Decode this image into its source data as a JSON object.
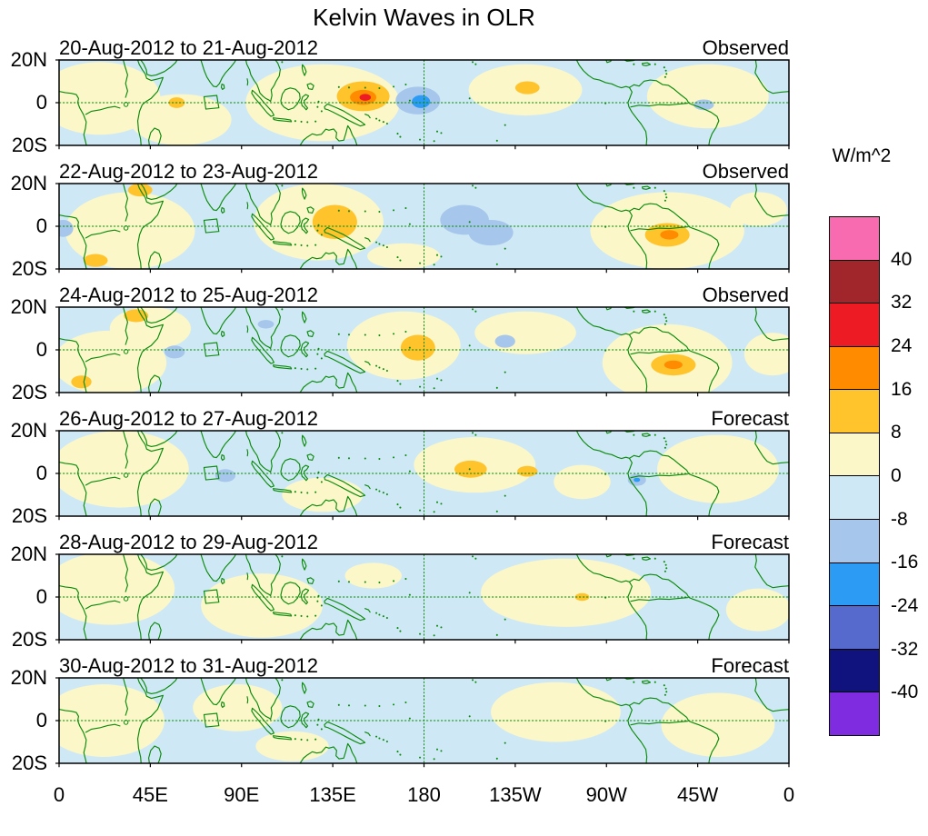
{
  "chart_data": {
    "type": "heatmap",
    "title": "Kelvin Waves in OLR",
    "x_axis": {
      "tick_labels": [
        "0",
        "45E",
        "90E",
        "135E",
        "180",
        "135W",
        "90W",
        "45W",
        "0"
      ],
      "tick_lon": [
        0,
        45,
        90,
        135,
        180,
        225,
        270,
        315,
        360
      ],
      "range_lon": [
        0,
        360
      ]
    },
    "y_axis": {
      "tick_labels": [
        "20N",
        "0",
        "20S"
      ],
      "range_lat": [
        20,
        -20
      ]
    },
    "colorbar": {
      "label": "W/m^2",
      "tick_labels": [
        "40",
        "32",
        "24",
        "16",
        "8",
        "0",
        "-8",
        "-16",
        "-24",
        "-32",
        "-40"
      ],
      "colors": [
        "#F96BB0",
        "#A0262B",
        "#EC1B24",
        "#FF8C00",
        "#FFC32B",
        "#FBF7C9",
        "#CEE9F5",
        "#A6C6EB",
        "#2B9BF4",
        "#5669CC",
        "#10127E",
        "#7F2BE0"
      ]
    },
    "colors": {
      "coastline": "#0B8A0B",
      "frame": "#000000",
      "background": "#FFFFFF"
    },
    "blob_format": [
      "lon_deg_east",
      "lat_deg_north",
      "rx_deg",
      "ry_deg",
      "band_lower_wm2"
    ],
    "panels": [
      {
        "title": "20-Aug-2012 to 21-Aug-2012",
        "tag": "Observed",
        "blobs": [
          [
            20,
            2,
            30,
            17,
            0
          ],
          [
            60,
            -8,
            25,
            12,
            0
          ],
          [
            130,
            0,
            38,
            18,
            0
          ],
          [
            230,
            6,
            28,
            12,
            0
          ],
          [
            320,
            3,
            30,
            15,
            0
          ],
          [
            150,
            3,
            13,
            7,
            8
          ],
          [
            58,
            0,
            4,
            2.5,
            8
          ],
          [
            231,
            7,
            6,
            3,
            8
          ],
          [
            150,
            2.5,
            6.5,
            3.5,
            16
          ],
          [
            151,
            2.5,
            2.8,
            1.6,
            24
          ],
          [
            177,
            1,
            11,
            6.5,
            -16
          ],
          [
            318,
            -1,
            5,
            2.5,
            -16
          ],
          [
            178.5,
            0.5,
            4.5,
            3,
            -24
          ]
        ]
      },
      {
        "title": "22-Aug-2012 to 23-Aug-2012",
        "tag": "Observed",
        "blobs": [
          [
            35,
            -2,
            32,
            18,
            0
          ],
          [
            128,
            2,
            32,
            18,
            0
          ],
          [
            300,
            -2,
            38,
            18,
            0
          ],
          [
            345,
            8,
            14,
            8,
            0
          ],
          [
            170,
            -14,
            18,
            6,
            0
          ],
          [
            136,
            2,
            11,
            8,
            8
          ],
          [
            40,
            17,
            6,
            3,
            8
          ],
          [
            18,
            -16,
            6,
            3,
            8
          ],
          [
            300,
            -4,
            11,
            5.5,
            8
          ],
          [
            301,
            -4,
            4.5,
            2.2,
            16
          ],
          [
            200,
            3,
            12,
            7,
            -16
          ],
          [
            213,
            -3,
            11,
            6,
            -16
          ],
          [
            2,
            -1,
            5,
            4,
            -16
          ]
        ]
      },
      {
        "title": "24-Aug-2012 to 25-Aug-2012",
        "tag": "Observed",
        "blobs": [
          [
            25,
            -6,
            28,
            15,
            0
          ],
          [
            45,
            10,
            20,
            10,
            0
          ],
          [
            170,
            2,
            28,
            16,
            0
          ],
          [
            300,
            -6,
            32,
            18,
            0
          ],
          [
            230,
            8,
            25,
            10,
            0
          ],
          [
            352,
            -2,
            14,
            10,
            0
          ],
          [
            177,
            1,
            8.5,
            6,
            8
          ],
          [
            303,
            -7,
            11,
            5,
            8
          ],
          [
            38,
            16,
            6,
            3,
            8
          ],
          [
            11,
            -15,
            5,
            3,
            8
          ],
          [
            303,
            -7,
            4.5,
            2,
            16
          ],
          [
            57,
            -1,
            5,
            3,
            -16
          ],
          [
            102,
            12,
            4,
            2,
            -16
          ],
          [
            220,
            4,
            5,
            3,
            -16
          ]
        ]
      },
      {
        "title": "26-Aug-2012 to 27-Aug-2012",
        "tag": "Forecast",
        "blobs": [
          [
            30,
            2,
            34,
            18,
            0
          ],
          [
            205,
            4,
            30,
            13,
            0
          ],
          [
            258,
            -4,
            14,
            8,
            0
          ],
          [
            325,
            2,
            30,
            16,
            0
          ],
          [
            130,
            -10,
            20,
            8,
            0
          ],
          [
            203,
            2,
            8,
            4,
            8
          ],
          [
            231,
            1,
            5,
            2.5,
            8
          ],
          [
            82,
            -1,
            5,
            3,
            -16
          ],
          [
            285,
            -3,
            4.5,
            2.8,
            -16
          ],
          [
            285,
            -3,
            1.6,
            1,
            -24
          ]
        ]
      },
      {
        "title": "28-Aug-2012 to 29-Aug-2012",
        "tag": "Forecast",
        "blobs": [
          [
            25,
            4,
            32,
            17,
            0
          ],
          [
            100,
            -4,
            30,
            15,
            0
          ],
          [
            250,
            2,
            42,
            16,
            0
          ],
          [
            345,
            -6,
            16,
            10,
            0
          ],
          [
            155,
            10,
            14,
            6,
            0
          ],
          [
            258,
            0,
            3.5,
            1.8,
            8
          ]
        ]
      },
      {
        "title": "30-Aug-2012 to 31-Aug-2012",
        "tag": "Forecast",
        "blobs": [
          [
            22,
            0,
            30,
            17,
            0
          ],
          [
            88,
            6,
            22,
            11,
            0
          ],
          [
            245,
            4,
            32,
            14,
            0
          ],
          [
            325,
            -2,
            28,
            15,
            0
          ],
          [
            115,
            -12,
            18,
            7,
            0
          ]
        ]
      }
    ]
  }
}
